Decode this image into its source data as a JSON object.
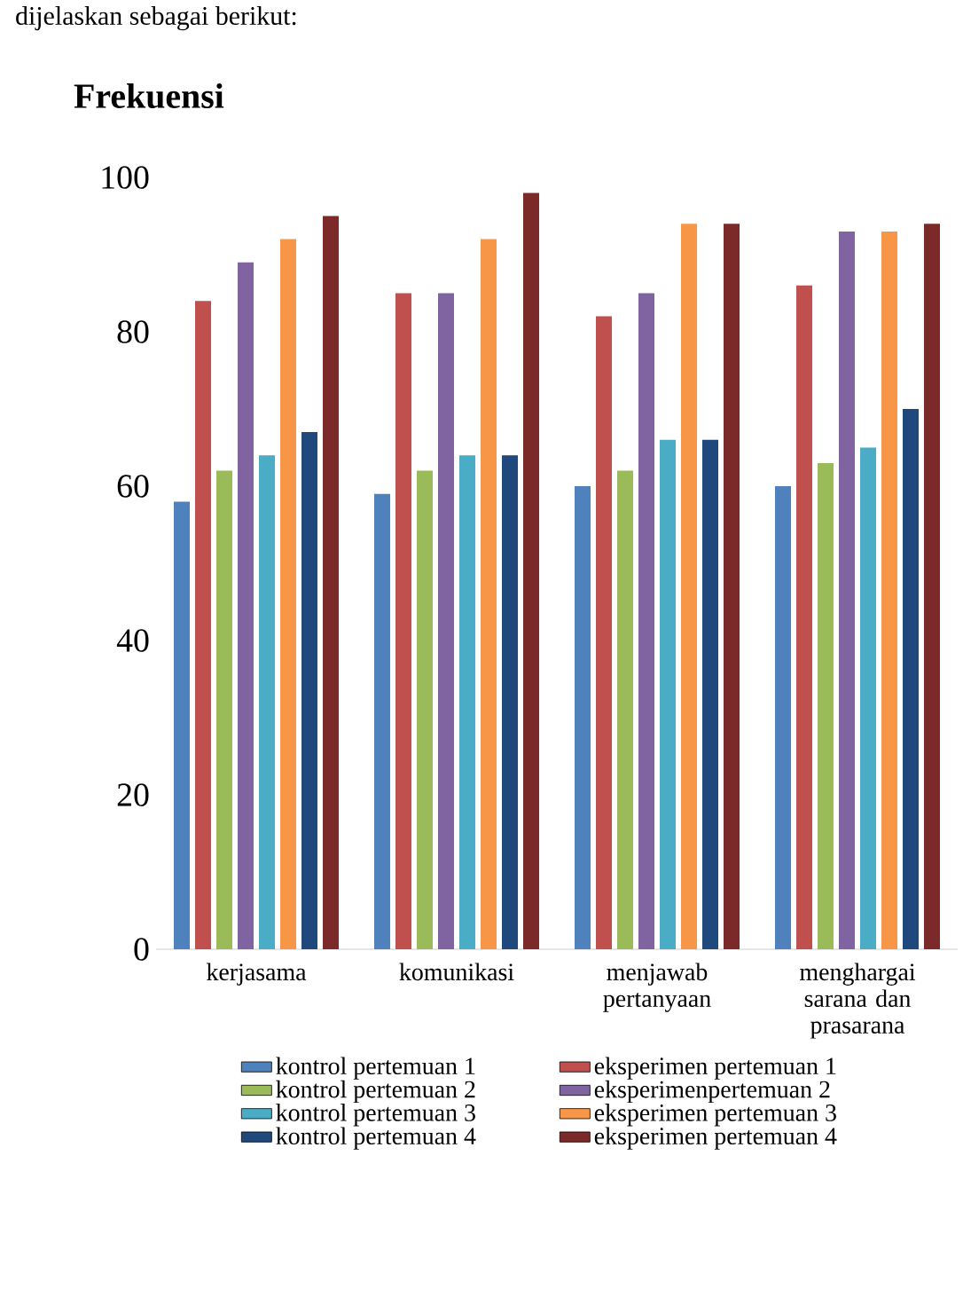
{
  "chart_data": {
    "type": "bar",
    "title": "Frekuensi",
    "annotations": [
      "dijelaskan sebagai berikut:"
    ],
    "categories": [
      "kerjasama",
      "komunikasi",
      "menjawab pertanyaan",
      "menghargai sarana dan prasarana"
    ],
    "series": [
      {
        "name": "kontrol pertemuan 1",
        "color": "#4f81bd",
        "values": [
          58,
          59,
          60,
          60
        ]
      },
      {
        "name": "eksperimen pertemuan 1",
        "color": "#c0504d",
        "values": [
          84,
          85,
          82,
          86
        ]
      },
      {
        "name": "kontrol pertemuan 2",
        "color": "#9bbb59",
        "values": [
          62,
          62,
          62,
          63
        ]
      },
      {
        "name": "eksperimenpertemuan 2",
        "color": "#8064a2",
        "values": [
          89,
          85,
          85,
          93
        ]
      },
      {
        "name": "kontrol pertemuan 3",
        "color": "#4bacc6",
        "values": [
          64,
          64,
          66,
          65
        ]
      },
      {
        "name": "eksperimen pertemuan 3",
        "color": "#f79646",
        "values": [
          92,
          92,
          94,
          93
        ]
      },
      {
        "name": "kontrol pertemuan 4",
        "color": "#1f497d",
        "values": [
          67,
          64,
          66,
          70
        ]
      },
      {
        "name": "eksperimen pertemuan 4",
        "color": "#7b2a29",
        "values": [
          95,
          98,
          94,
          94
        ]
      }
    ],
    "ylim": [
      0,
      100
    ],
    "yticks": [
      0,
      20,
      40,
      60,
      80,
      100
    ],
    "grid": false,
    "legend": "bottom"
  }
}
